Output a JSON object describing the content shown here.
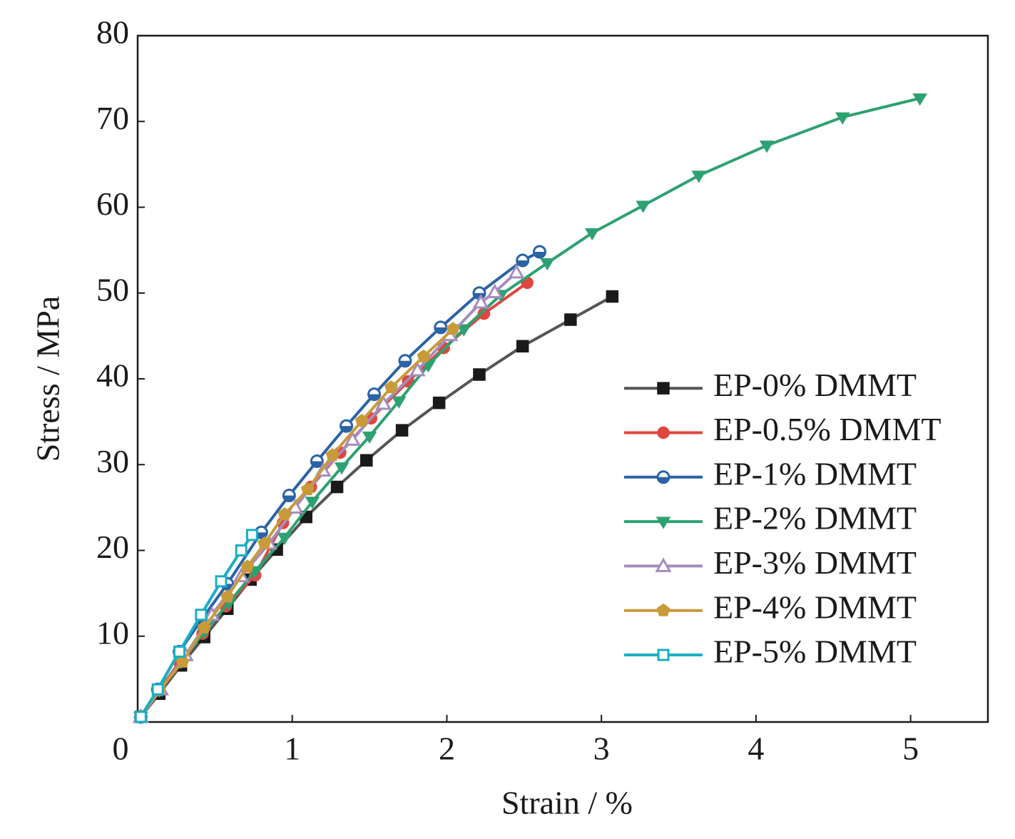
{
  "chart_data": {
    "type": "line",
    "xlabel": "Strain / %",
    "ylabel": "Stress / MPa",
    "xlim": [
      0,
      5.5
    ],
    "ylim": [
      0,
      80
    ],
    "xticks": [
      0,
      1,
      2,
      3,
      4,
      5
    ],
    "yticks": [
      10,
      20,
      30,
      40,
      50,
      60,
      70,
      80
    ],
    "legend": "lower right",
    "series": [
      {
        "name": "EP-0% DMMT",
        "color": "#1a1a1a",
        "line_color": "#555555",
        "marker": "square",
        "x": [
          0.02,
          0.14,
          0.28,
          0.43,
          0.58,
          0.73,
          0.9,
          1.09,
          1.29,
          1.48,
          1.71,
          1.95,
          2.21,
          2.49,
          2.8,
          3.07
        ],
        "values": [
          0.6,
          3.3,
          6.6,
          9.9,
          13.2,
          16.6,
          20.1,
          23.9,
          27.4,
          30.5,
          34.0,
          37.2,
          40.5,
          43.8,
          46.9,
          49.6
        ]
      },
      {
        "name": "EP-0.5% DMMT",
        "color": "#e0463f",
        "line_color": "#e0463f",
        "marker": "circle",
        "x": [
          0.02,
          0.14,
          0.27,
          0.42,
          0.57,
          0.76,
          0.94,
          1.12,
          1.31,
          1.51,
          1.75,
          1.98,
          2.24,
          2.52
        ],
        "values": [
          0.6,
          3.7,
          7.0,
          10.3,
          13.5,
          17.1,
          23.2,
          27.4,
          31.4,
          35.4,
          39.7,
          43.6,
          47.6,
          51.2
        ]
      },
      {
        "name": "EP-1% DMMT",
        "color": "#2a63a6",
        "line_color": "#2a63a6",
        "marker": "half-circle",
        "x": [
          0.02,
          0.13,
          0.27,
          0.42,
          0.58,
          0.8,
          0.98,
          1.16,
          1.35,
          1.53,
          1.73,
          1.96,
          2.21,
          2.49,
          2.6
        ],
        "values": [
          0.6,
          3.8,
          8.2,
          12.1,
          16.1,
          22.1,
          26.4,
          30.4,
          34.5,
          38.2,
          42.1,
          46.0,
          50.0,
          53.8,
          54.8
        ]
      },
      {
        "name": "EP-2% DMMT",
        "color": "#2ea172",
        "line_color": "#2ea172",
        "marker": "triangle-down",
        "x": [
          0.02,
          0.14,
          0.28,
          0.43,
          0.59,
          0.76,
          0.95,
          1.13,
          1.32,
          1.5,
          1.69,
          1.88,
          2.11,
          2.35,
          2.65,
          2.94,
          3.27,
          3.63,
          4.07,
          4.56,
          5.06
        ],
        "values": [
          0.6,
          3.7,
          7.0,
          10.5,
          13.9,
          17.6,
          21.5,
          25.7,
          29.7,
          33.3,
          37.4,
          41.6,
          45.8,
          49.8,
          53.5,
          57.0,
          60.2,
          63.7,
          67.2,
          70.5,
          72.7
        ]
      },
      {
        "name": "EP-3% DMMT",
        "color": "#a58cbf",
        "line_color": "#a58cbf",
        "marker": "triangle-up",
        "x": [
          0.02,
          0.15,
          0.31,
          0.48,
          0.67,
          0.85,
          1.02,
          1.2,
          1.39,
          1.59,
          1.81,
          2.02,
          2.22,
          2.31,
          2.45
        ],
        "values": [
          0.6,
          3.8,
          7.8,
          12.5,
          17.0,
          20.8,
          25.0,
          29.3,
          32.9,
          37.1,
          41.0,
          45.1,
          48.9,
          50.1,
          52.4
        ]
      },
      {
        "name": "EP-4% DMMT",
        "color": "#c99a3a",
        "line_color": "#c99a3a",
        "marker": "pentagon",
        "x": [
          0.02,
          0.14,
          0.29,
          0.43,
          0.58,
          0.71,
          0.82,
          0.95,
          1.1,
          1.26,
          1.45,
          1.64,
          1.85,
          2.04
        ],
        "values": [
          0.6,
          3.7,
          7.0,
          11.0,
          14.6,
          18.1,
          20.8,
          24.2,
          27.1,
          31.1,
          35.1,
          39.0,
          42.6,
          45.8
        ]
      },
      {
        "name": "EP-5% DMMT",
        "color": "#1aaec4",
        "line_color": "#1aaec4",
        "marker": "open-square",
        "x": [
          0.02,
          0.13,
          0.27,
          0.41,
          0.54,
          0.67,
          0.74
        ],
        "values": [
          0.6,
          3.8,
          8.2,
          12.5,
          16.4,
          20.0,
          21.8
        ]
      }
    ]
  }
}
